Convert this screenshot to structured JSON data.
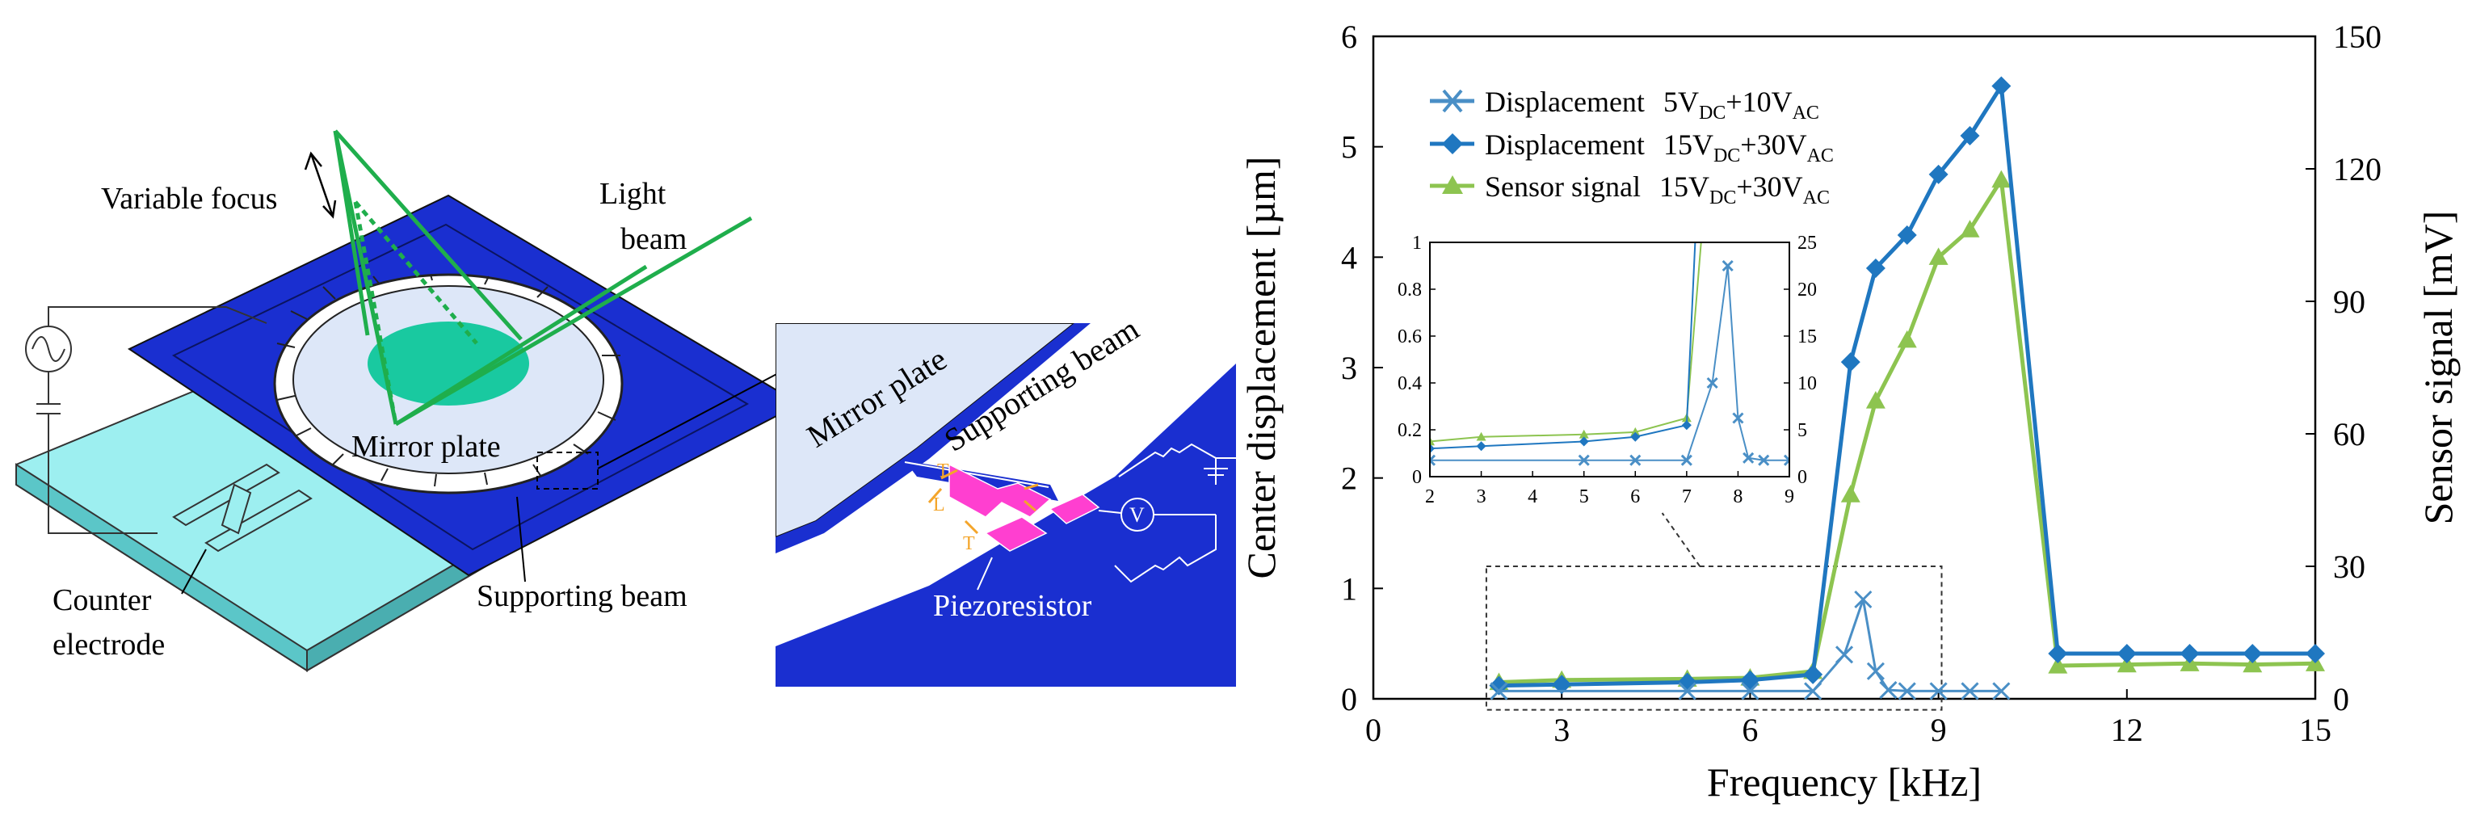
{
  "device_diagram": {
    "labels": {
      "variable_focus": "Variable focus",
      "light_beam_line1": "Light",
      "light_beam_line2": "beam",
      "mirror_plate": "Mirror plate",
      "supporting_beam": "Supporting beam",
      "counter_electrode_line1": "Counter",
      "counter_electrode_line2": "electrode"
    }
  },
  "detail_diagram": {
    "labels": {
      "mirror_plate": "Mirror plate",
      "supporting_beam": "Supporting beam",
      "piezoresistor": "Piezoresistor",
      "voltmeter": "V",
      "t_upper": "T",
      "l_label": "L",
      "t_lower": "T"
    }
  },
  "chart_data": {
    "type": "line",
    "xlabel": "Frequency [kHz]",
    "ylabel_left": "Center displacement [µm]",
    "ylabel_right": "Sensor signal [mV]",
    "xlim": [
      0,
      15
    ],
    "xticks": [
      0,
      3,
      6,
      9,
      12,
      15
    ],
    "ylim_left": [
      0,
      6
    ],
    "yticks_left": [
      0,
      1,
      2,
      3,
      4,
      5,
      6
    ],
    "ylim_right": [
      0,
      150
    ],
    "yticks_right": [
      0,
      30,
      60,
      90,
      120,
      150
    ],
    "legend_position": "top-left",
    "series": [
      {
        "name": "Displacement 5V_DC+10V_AC",
        "legend_main": "Displacement",
        "legend_volt1": "5V",
        "legend_sub1": "DC",
        "legend_volt2": "+10V",
        "legend_sub2": "AC",
        "marker": "x",
        "color": "#4a8fc6",
        "axis": "left",
        "x": [
          2,
          5,
          6,
          7,
          7.5,
          7.8,
          8,
          8.2,
          8.5,
          9,
          9.5,
          10
        ],
        "y": [
          0.07,
          0.07,
          0.07,
          0.07,
          0.4,
          0.9,
          0.25,
          0.08,
          0.07,
          0.07,
          0.07,
          0.07
        ]
      },
      {
        "name": "Displacement 15V_DC+30V_AC",
        "legend_main": "Displacement",
        "legend_volt1": "15V",
        "legend_sub1": "DC",
        "legend_volt2": "+30V",
        "legend_sub2": "AC",
        "marker": "diamond",
        "color": "#1f77c0",
        "axis": "left",
        "x": [
          2,
          3,
          5,
          6,
          7,
          7.6,
          8,
          8.5,
          9,
          9.5,
          10,
          10.9,
          12,
          13,
          14,
          15
        ],
        "y": [
          0.12,
          0.13,
          0.15,
          0.17,
          0.22,
          3.05,
          3.9,
          4.2,
          4.75,
          5.1,
          5.55,
          0.41,
          0.41,
          0.41,
          0.41,
          0.41
        ]
      },
      {
        "name": "Sensor signal 15V_DC+30V_AC",
        "legend_main": "Sensor signal",
        "legend_volt1": "15V",
        "legend_sub1": "DC",
        "legend_volt2": "+30V",
        "legend_sub2": "AC",
        "marker": "triangle",
        "color": "#8dc450",
        "axis": "right",
        "x": [
          2,
          3,
          5,
          6,
          7,
          7.6,
          8,
          8.5,
          9,
          9.5,
          10,
          10.9,
          12,
          13,
          14,
          15
        ],
        "y": [
          3.75,
          4.25,
          4.5,
          4.75,
          6.25,
          46.25,
          67.5,
          81.25,
          100,
          106.25,
          117.5,
          7.5,
          7.75,
          8,
          7.75,
          8
        ]
      }
    ],
    "inset": {
      "xlim": [
        2,
        9
      ],
      "xticks": [
        2,
        3,
        4,
        5,
        6,
        7,
        8,
        9
      ],
      "ylim_left": [
        0,
        1
      ],
      "yticks_left": [
        0,
        0.2,
        0.4,
        0.6,
        0.8,
        1
      ],
      "ylim_right": [
        0,
        25
      ],
      "yticks_right": [
        0,
        5,
        10,
        15,
        20,
        25
      ],
      "zoom_region_x": [
        1.8,
        9.05
      ],
      "zoom_region_y": [
        -0.1,
        1.2
      ]
    }
  }
}
